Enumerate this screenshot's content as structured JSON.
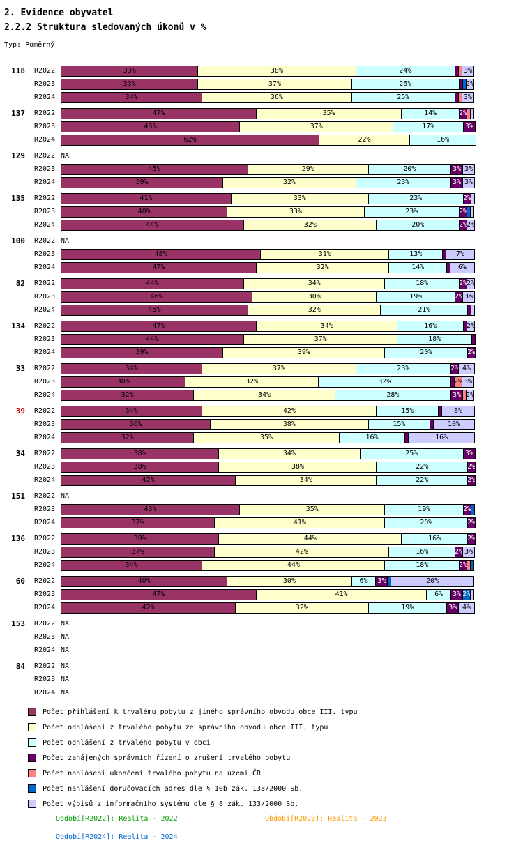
{
  "header": {
    "title": "2. Evidence obyvatel",
    "subtitle": "2.2.2 Struktura sledovaných úkonů v %",
    "type_label": "Typ: Poměrný"
  },
  "chart_data": {
    "type": "bar",
    "orientation": "horizontal",
    "stacked": true,
    "unit": "%",
    "x_max": 100,
    "na_label": "NA",
    "highlight_color": "#CC0000",
    "series": [
      {
        "name": "Počet přihlášení k trvalému pobytu z jiného správního obvodu obce III. typu",
        "color": "#993366",
        "dark": false
      },
      {
        "name": "Počet odhlášení z trvalého pobytu ze správního obvodu obce III. typu",
        "color": "#FFFFCC",
        "dark": false
      },
      {
        "name": "Počet odhlášení z trvalého pobytu v obci",
        "color": "#CCFFFF",
        "dark": false
      },
      {
        "name": "Počet zahájených správních řízení o zrušení trvalého pobytu",
        "color": "#660066",
        "dark": true
      },
      {
        "name": "Počet nahlášení ukončení trvalého pobytu na území ČR",
        "color": "#FF8080",
        "dark": false
      },
      {
        "name": "Počet nahlášení doručovacích adres dle § 10b zák. 133/2000 Sb.",
        "color": "#0066CC",
        "dark": true
      },
      {
        "name": "Počet výpisů z informačního systému dle § 8 zák. 133/2000 Sb.",
        "color": "#CCCCFF",
        "dark": false
      }
    ],
    "groups": [
      {
        "id": "118",
        "highlight": false,
        "rows": [
          {
            "period": "R2022",
            "na": false,
            "values": [
              33,
              38,
              24,
              1,
              1,
              0,
              3
            ]
          },
          {
            "period": "R2023",
            "na": false,
            "values": [
              33,
              37,
              26,
              1,
              0,
              1,
              2
            ]
          },
          {
            "period": "R2024",
            "na": false,
            "values": [
              34,
              36,
              25,
              1,
              1,
              0,
              3
            ]
          }
        ]
      },
      {
        "id": "137",
        "highlight": false,
        "rows": [
          {
            "period": "R2022",
            "na": false,
            "values": [
              47,
              35,
              14,
              2,
              1,
              0,
              1
            ]
          },
          {
            "period": "R2023",
            "na": false,
            "values": [
              43,
              37,
              17,
              3,
              0,
              0,
              0
            ]
          },
          {
            "period": "R2024",
            "na": false,
            "values": [
              62,
              22,
              16,
              0,
              0,
              0,
              0
            ]
          }
        ]
      },
      {
        "id": "129",
        "highlight": false,
        "rows": [
          {
            "period": "R2022",
            "na": true,
            "values": []
          },
          {
            "period": "R2023",
            "na": false,
            "values": [
              45,
              29,
              20,
              3,
              0,
              0,
              3
            ]
          },
          {
            "period": "R2024",
            "na": false,
            "values": [
              39,
              32,
              23,
              3,
              0,
              0,
              3
            ]
          }
        ]
      },
      {
        "id": "135",
        "highlight": false,
        "rows": [
          {
            "period": "R2022",
            "na": false,
            "values": [
              41,
              33,
              23,
              2,
              0,
              0,
              1
            ]
          },
          {
            "period": "R2023",
            "na": false,
            "values": [
              40,
              33,
              23,
              2,
              0,
              1,
              1
            ]
          },
          {
            "period": "R2024",
            "na": false,
            "values": [
              44,
              32,
              20,
              2,
              0,
              0,
              2
            ]
          }
        ]
      },
      {
        "id": "100",
        "highlight": false,
        "rows": [
          {
            "period": "R2022",
            "na": true,
            "values": []
          },
          {
            "period": "R2023",
            "na": false,
            "values": [
              48,
              31,
              13,
              1,
              0,
              0,
              7
            ]
          },
          {
            "period": "R2024",
            "na": false,
            "values": [
              47,
              32,
              14,
              1,
              0,
              0,
              6
            ]
          }
        ]
      },
      {
        "id": "82",
        "highlight": false,
        "rows": [
          {
            "period": "R2022",
            "na": false,
            "values": [
              44,
              34,
              18,
              2,
              0,
              0,
              2
            ]
          },
          {
            "period": "R2023",
            "na": false,
            "values": [
              46,
              30,
              19,
              2,
              0,
              0,
              3
            ]
          },
          {
            "period": "R2024",
            "na": false,
            "values": [
              45,
              32,
              21,
              1,
              0,
              0,
              1
            ]
          }
        ]
      },
      {
        "id": "134",
        "highlight": false,
        "rows": [
          {
            "period": "R2022",
            "na": false,
            "values": [
              47,
              34,
              16,
              1,
              0,
              0,
              2
            ]
          },
          {
            "period": "R2023",
            "na": false,
            "values": [
              44,
              37,
              18,
              1,
              0,
              0,
              0
            ]
          },
          {
            "period": "R2024",
            "na": false,
            "values": [
              39,
              39,
              20,
              2,
              0,
              0,
              0
            ]
          }
        ]
      },
      {
        "id": "33",
        "highlight": false,
        "rows": [
          {
            "period": "R2022",
            "na": false,
            "values": [
              34,
              37,
              23,
              2,
              0,
              0,
              4
            ]
          },
          {
            "period": "R2023",
            "na": false,
            "values": [
              30,
              32,
              32,
              1,
              2,
              0,
              3
            ]
          },
          {
            "period": "R2024",
            "na": false,
            "values": [
              32,
              34,
              28,
              3,
              1,
              0,
              2
            ]
          }
        ]
      },
      {
        "id": "39",
        "highlight": true,
        "rows": [
          {
            "period": "R2022",
            "na": false,
            "values": [
              34,
              42,
              15,
              1,
              0,
              0,
              8
            ]
          },
          {
            "period": "R2023",
            "na": false,
            "values": [
              36,
              38,
              15,
              1,
              0,
              0,
              10
            ]
          },
          {
            "period": "R2024",
            "na": false,
            "values": [
              32,
              35,
              16,
              1,
              0,
              0,
              16
            ]
          }
        ]
      },
      {
        "id": "34",
        "highlight": false,
        "rows": [
          {
            "period": "R2022",
            "na": false,
            "values": [
              38,
              34,
              25,
              3,
              0,
              0,
              0
            ]
          },
          {
            "period": "R2023",
            "na": false,
            "values": [
              38,
              38,
              22,
              2,
              0,
              0,
              0
            ]
          },
          {
            "period": "R2024",
            "na": false,
            "values": [
              42,
              34,
              22,
              2,
              0,
              0,
              0
            ]
          }
        ]
      },
      {
        "id": "151",
        "highlight": false,
        "rows": [
          {
            "period": "R2022",
            "na": true,
            "values": []
          },
          {
            "period": "R2023",
            "na": false,
            "values": [
              43,
              35,
              19,
              2,
              0,
              1,
              0
            ]
          },
          {
            "period": "R2024",
            "na": false,
            "values": [
              37,
              41,
              20,
              2,
              0,
              0,
              0
            ]
          }
        ]
      },
      {
        "id": "136",
        "highlight": false,
        "rows": [
          {
            "period": "R2022",
            "na": false,
            "values": [
              38,
              44,
              16,
              2,
              0,
              0,
              0
            ]
          },
          {
            "period": "R2023",
            "na": false,
            "values": [
              37,
              42,
              16,
              2,
              0,
              0,
              3
            ]
          },
          {
            "period": "R2024",
            "na": false,
            "values": [
              34,
              44,
              18,
              2,
              1,
              1,
              0
            ]
          }
        ]
      },
      {
        "id": "60",
        "highlight": false,
        "rows": [
          {
            "period": "R2022",
            "na": false,
            "values": [
              40,
              30,
              6,
              3,
              0,
              1,
              20
            ]
          },
          {
            "period": "R2023",
            "na": false,
            "values": [
              47,
              41,
              6,
              3,
              0,
              2,
              1
            ]
          },
          {
            "period": "R2024",
            "na": false,
            "values": [
              42,
              32,
              19,
              3,
              0,
              0,
              4
            ]
          }
        ]
      },
      {
        "id": "153",
        "highlight": false,
        "rows": [
          {
            "period": "R2022",
            "na": true,
            "values": []
          },
          {
            "period": "R2023",
            "na": true,
            "values": []
          },
          {
            "period": "R2024",
            "na": true,
            "values": []
          }
        ]
      },
      {
        "id": "84",
        "highlight": false,
        "rows": [
          {
            "period": "R2022",
            "na": true,
            "values": []
          },
          {
            "period": "R2023",
            "na": true,
            "values": []
          },
          {
            "period": "R2024",
            "na": true,
            "values": []
          }
        ]
      }
    ]
  },
  "footer": {
    "rows": [
      [
        {
          "text": "Období[R2022]: Realita - 2022",
          "color": "#009900"
        },
        {
          "text": "Období[R2023]: Realita - 2023",
          "color": "#FF9900"
        }
      ],
      [
        {
          "text": "Období[R2024]: Realita - 2024",
          "color": "#0066CC"
        }
      ]
    ]
  }
}
